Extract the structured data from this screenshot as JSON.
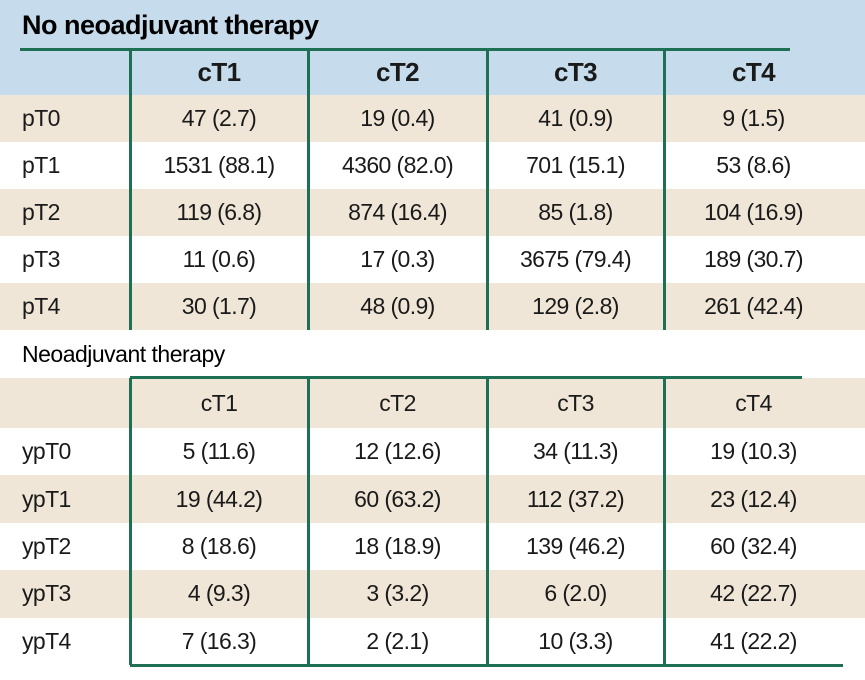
{
  "sections": [
    {
      "title": "No neoadjuvant therapy",
      "columns": [
        "cT1",
        "cT2",
        "cT3",
        "cT4"
      ],
      "rows": [
        {
          "label": "pT0",
          "cells": [
            "47 (2.7)",
            "19 (0.4)",
            "41 (0.9)",
            "9 (1.5)"
          ]
        },
        {
          "label": "pT1",
          "cells": [
            "1531 (88.1)",
            "4360 (82.0)",
            "701 (15.1)",
            "53 (8.6)"
          ]
        },
        {
          "label": "pT2",
          "cells": [
            "119 (6.8)",
            "874 (16.4)",
            "85 (1.8)",
            "104 (16.9)"
          ]
        },
        {
          "label": "pT3",
          "cells": [
            "11 (0.6)",
            "17 (0.3)",
            "3675 (79.4)",
            "189 (30.7)"
          ]
        },
        {
          "label": "pT4",
          "cells": [
            "30 (1.7)",
            "48 (0.9)",
            "129 (2.8)",
            "261 (42.4)"
          ]
        }
      ]
    },
    {
      "title": "Neoadjuvant therapy",
      "columns": [
        "cT1",
        "cT2",
        "cT3",
        "cT4"
      ],
      "rows": [
        {
          "label": "ypT0",
          "cells": [
            "5 (11.6)",
            "12 (12.6)",
            "34 (11.3)",
            "19 (10.3)"
          ]
        },
        {
          "label": "ypT1",
          "cells": [
            "19 (44.2)",
            "60 (63.2)",
            "112 (37.2)",
            "23 (12.4)"
          ]
        },
        {
          "label": "ypT2",
          "cells": [
            "8 (18.6)",
            "18 (18.9)",
            "139 (46.2)",
            "60 (32.4)"
          ]
        },
        {
          "label": "ypT3",
          "cells": [
            "4 (9.3)",
            "3 (3.2)",
            "6 (2.0)",
            "42 (22.7)"
          ]
        },
        {
          "label": "ypT4",
          "cells": [
            "7 (16.3)",
            "2 (2.1)",
            "10 (3.3)",
            "41 (22.2)"
          ]
        }
      ]
    }
  ]
}
